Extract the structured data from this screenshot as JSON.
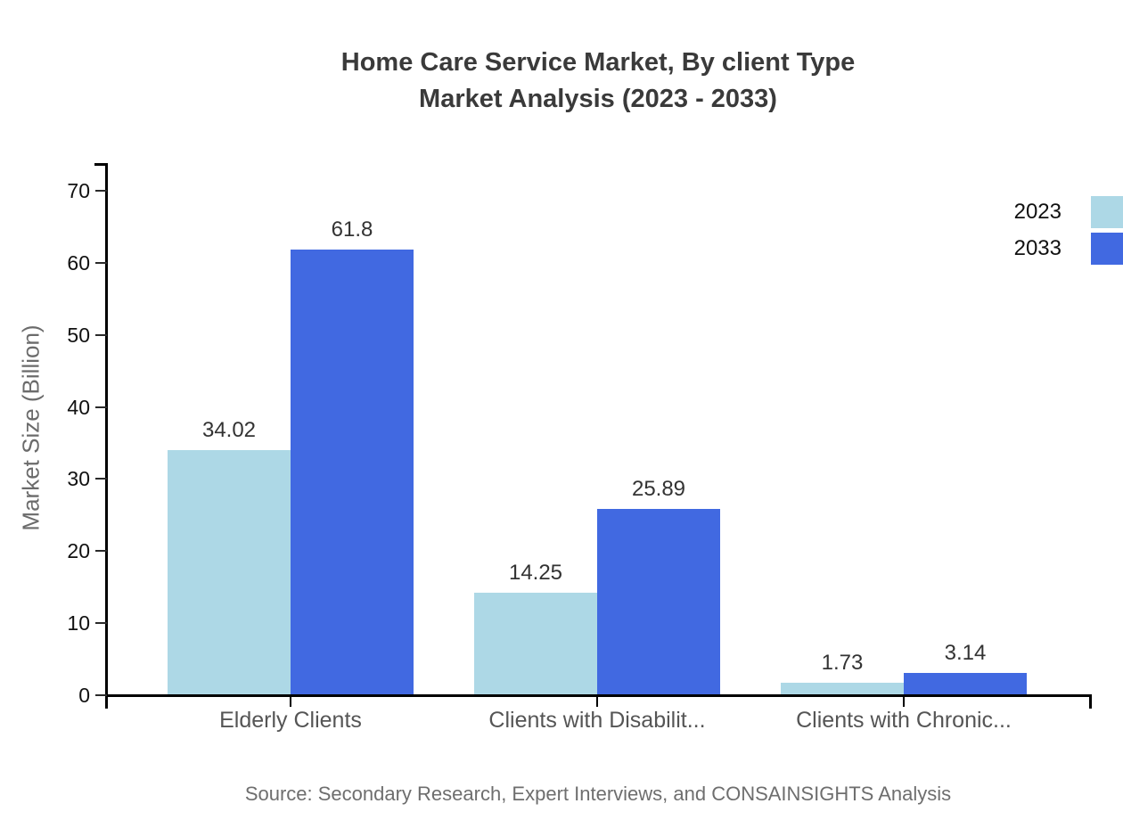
{
  "title": {
    "line1": "Home Care Service Market, By client Type",
    "line2": "Market Analysis (2023 - 2033)"
  },
  "source": "Source: Secondary Research, Expert Interviews, and CONSAINSIGHTS Analysis",
  "chart_data": {
    "type": "bar",
    "categories": [
      "Elderly Clients",
      "Clients with Disabilit...",
      "Clients with Chronic..."
    ],
    "series": [
      {
        "name": "2023",
        "color": "#ADD8E6",
        "values": [
          34.02,
          14.25,
          1.73
        ]
      },
      {
        "name": "2033",
        "color": "#4169E1",
        "values": [
          61.8,
          25.89,
          3.14
        ]
      }
    ],
    "title": "Home Care Service Market, By client Type Market Analysis (2023 - 2033)",
    "xlabel": "",
    "ylabel": "Market Size (Billion)",
    "ylim": [
      0,
      70
    ],
    "yticks": [
      0,
      10,
      20,
      30,
      40,
      50,
      60,
      70
    ],
    "grid": false,
    "legend_position": "top-right",
    "value_labels": true
  }
}
